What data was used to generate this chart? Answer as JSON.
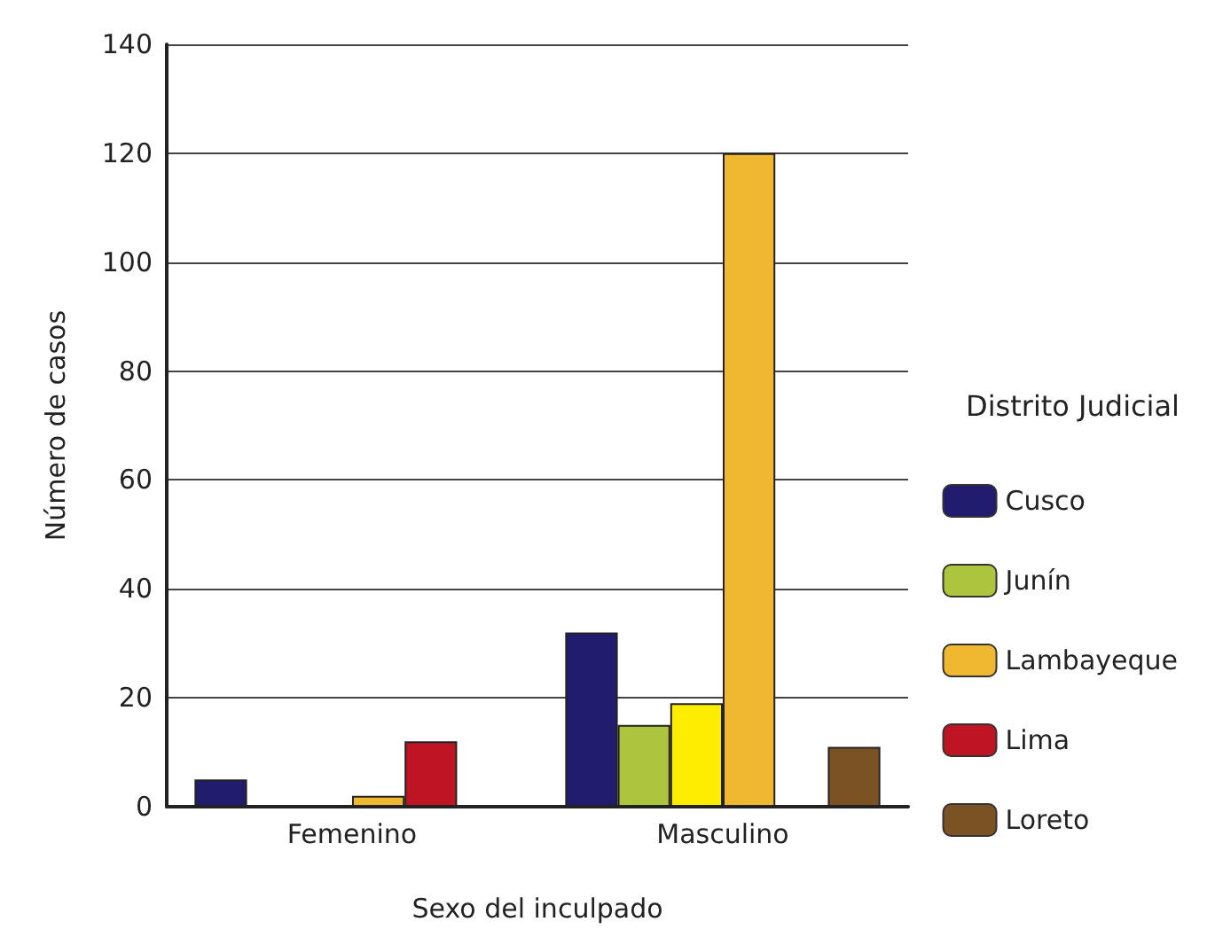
{
  "chart_data": {
    "type": "bar",
    "xlabel": "Sexo del inculpado",
    "ylabel": "Número de casos",
    "legend_title": "Distrito Judicial",
    "categories": [
      "Femenino",
      "Masculino"
    ],
    "series": [
      {
        "name": "Cusco",
        "color": "#211c6e",
        "values": [
          5,
          32
        ]
      },
      {
        "name": "Junín",
        "color": "#adc43f",
        "values": [
          null,
          15
        ]
      },
      {
        "color": "#ffed00",
        "values": [
          null,
          19
        ]
      },
      {
        "name": "Lambayeque",
        "color": "#f0b830",
        "values": [
          2,
          120
        ]
      },
      {
        "name": "Lima",
        "color": "#be1424",
        "values": [
          12,
          null
        ]
      },
      {
        "name": "Loreto",
        "color": "#7b5224",
        "values": [
          null,
          11
        ]
      }
    ],
    "ylim": [
      0,
      140
    ],
    "yticks": [
      0,
      20,
      40,
      60,
      80,
      100,
      120,
      140
    ],
    "grid": "y",
    "legend": "right"
  }
}
